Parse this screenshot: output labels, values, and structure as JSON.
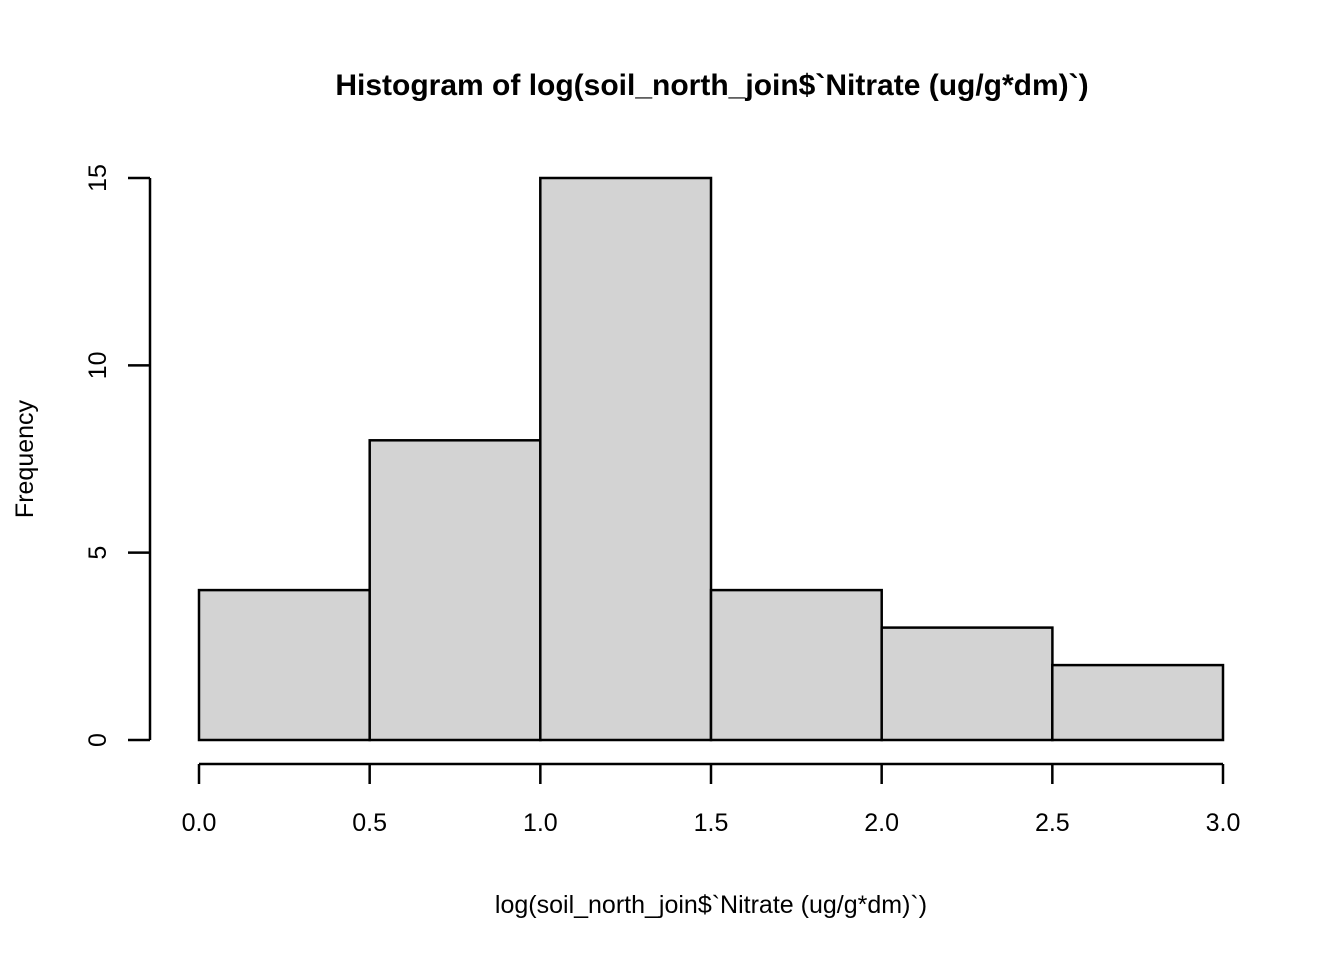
{
  "chart_data": {
    "type": "bar",
    "subtype": "histogram",
    "title": "Histogram of log(soil_north_join$`Nitrate (ug/g*dm)`)",
    "xlabel": "log(soil_north_join$`Nitrate (ug/g*dm)`)",
    "ylabel": "Frequency",
    "bin_breaks": [
      0.0,
      0.5,
      1.0,
      1.5,
      2.0,
      2.5,
      3.0
    ],
    "counts": [
      4,
      8,
      15,
      4,
      3,
      2
    ],
    "x_tick_labels": [
      "0.0",
      "0.5",
      "1.0",
      "1.5",
      "2.0",
      "2.5",
      "3.0"
    ],
    "x_tick_values": [
      0.0,
      0.5,
      1.0,
      1.5,
      2.0,
      2.5,
      3.0
    ],
    "y_tick_labels": [
      "0",
      "5",
      "10",
      "15"
    ],
    "y_tick_values": [
      0,
      5,
      10,
      15
    ],
    "xlim": [
      0,
      3
    ],
    "ylim": [
      0,
      15
    ],
    "grid": false,
    "legend": false,
    "colors": {
      "bar_fill": "#d3d3d3",
      "bar_stroke": "#000000",
      "axis": "#000000",
      "text": "#000000",
      "background": "#ffffff"
    }
  }
}
